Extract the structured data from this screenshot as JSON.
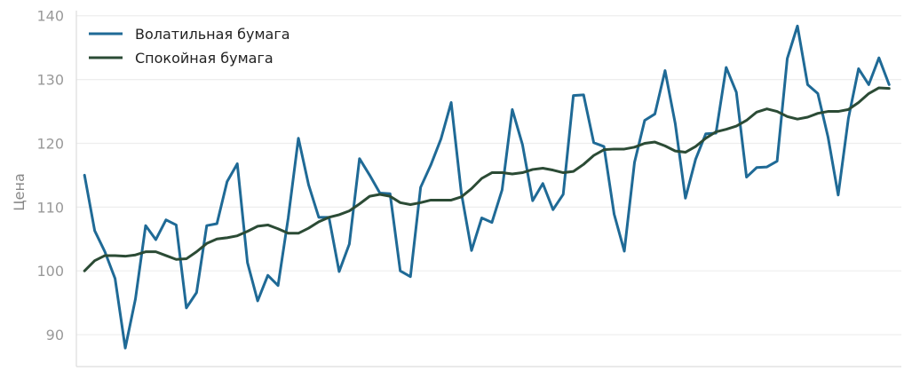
{
  "chart_data": {
    "type": "line",
    "title": "",
    "xlabel": "",
    "ylabel": "Цена",
    "ylim": [
      85,
      140.8
    ],
    "x": [
      0,
      1,
      2,
      3,
      4,
      5,
      6,
      7,
      8,
      9,
      10,
      11,
      12,
      13,
      14,
      15,
      16,
      17,
      18,
      19,
      20,
      21,
      22,
      23,
      24,
      25,
      26,
      27,
      28,
      29,
      30,
      31,
      32,
      33,
      34,
      35,
      36,
      37,
      38,
      39,
      40,
      41,
      42,
      43,
      44,
      45,
      46,
      47,
      48,
      49,
      50,
      51,
      52,
      53,
      54,
      55,
      56,
      57,
      58,
      59,
      60,
      61,
      62,
      63,
      64,
      65,
      66,
      67,
      68,
      69,
      70,
      71,
      72,
      73,
      74,
      75,
      76,
      77,
      78,
      79
    ],
    "xlim": [
      -0.8,
      80.2
    ],
    "yticks": [
      90,
      100,
      110,
      120,
      130,
      140
    ],
    "grid": "horizontal",
    "legend_position": "top-left",
    "series": [
      {
        "name": "Волатильная бумага",
        "color": "#1f6a96",
        "values": [
          115.0,
          106.3,
          103.0,
          98.8,
          87.9,
          95.6,
          107.1,
          104.9,
          108.0,
          107.2,
          94.2,
          96.6,
          107.1,
          107.4,
          114.0,
          116.8,
          101.3,
          95.3,
          99.3,
          97.7,
          108.3,
          120.8,
          113.5,
          108.4,
          108.4,
          99.9,
          104.2,
          117.6,
          115.0,
          112.2,
          112.1,
          100.0,
          99.1,
          113.1,
          116.6,
          120.7,
          126.4,
          112.2,
          103.2,
          108.3,
          107.6,
          112.7,
          125.3,
          119.8,
          111.0,
          113.7,
          109.6,
          112.0,
          127.5,
          127.6,
          120.1,
          119.5,
          108.9,
          103.1,
          117.0,
          123.6,
          124.6,
          131.4,
          123.1,
          111.4,
          117.5,
          121.5,
          121.6,
          131.9,
          128.0,
          114.7,
          116.2,
          116.3,
          117.2,
          133.3,
          138.4,
          129.2,
          127.8,
          121.0,
          111.9,
          123.9,
          131.7,
          129.2,
          133.4,
          129.2
        ]
      },
      {
        "name": "Спокойная бумага",
        "color": "#2b4b35",
        "values": [
          100.0,
          101.6,
          102.4,
          102.4,
          102.3,
          102.5,
          103.0,
          103.0,
          102.4,
          101.8,
          101.9,
          103.0,
          104.3,
          105.0,
          105.2,
          105.5,
          106.2,
          107.0,
          107.2,
          106.6,
          105.9,
          105.9,
          106.7,
          107.7,
          108.4,
          108.8,
          109.4,
          110.5,
          111.7,
          112.0,
          111.7,
          110.7,
          110.4,
          110.7,
          111.1,
          111.1,
          111.1,
          111.6,
          112.9,
          114.5,
          115.4,
          115.4,
          115.2,
          115.4,
          115.9,
          116.1,
          115.8,
          115.4,
          115.6,
          116.7,
          118.1,
          119.0,
          119.1,
          119.1,
          119.4,
          120.0,
          120.2,
          119.6,
          118.8,
          118.6,
          119.5,
          120.8,
          121.8,
          122.2,
          122.7,
          123.6,
          124.9,
          125.4,
          125.0,
          124.2,
          123.8,
          124.1,
          124.7,
          125.0,
          125.0,
          125.3,
          126.4,
          127.8,
          128.7,
          128.6
        ]
      }
    ]
  }
}
